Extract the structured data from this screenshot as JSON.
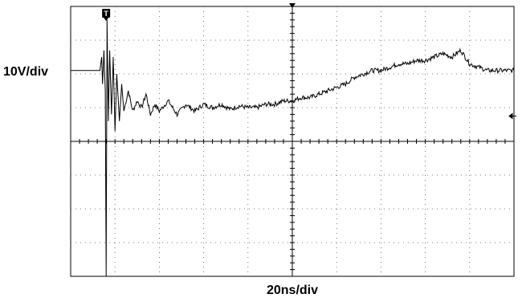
{
  "chart_data": {
    "type": "line",
    "title": "",
    "xlabel": "20ns/div",
    "ylabel": "10V/div",
    "x_divisions": 10,
    "y_divisions": 8,
    "grid": true,
    "trigger_marker": "T",
    "trigger_time_div": 0.8,
    "ground_level_div": 0,
    "reference_arrow": "left-arrow-icon",
    "reference_level_div": 0.75,
    "trace_color": "#000000",
    "grid_color": "#000000",
    "series": [
      {
        "x": [
          0,
          0.5,
          0.66,
          0.7,
          0.72,
          0.75,
          0.78,
          0.8,
          0.82,
          0.85,
          0.88,
          0.92,
          0.96,
          1.0,
          1.04,
          1.1,
          1.15,
          1.2,
          1.3,
          1.4,
          1.5,
          1.6,
          1.7,
          1.8,
          1.9,
          2.0,
          2.2,
          2.4,
          2.6,
          2.8,
          3.0,
          3.2,
          3.4,
          3.6,
          3.8,
          4.0,
          4.2,
          4.4,
          4.6,
          4.8,
          5.0,
          5.2,
          5.4,
          5.6,
          5.8,
          6.0,
          6.2,
          6.4,
          6.6,
          6.8,
          7.0,
          7.2,
          7.4,
          7.6,
          7.8,
          8.0,
          8.2,
          8.4,
          8.6,
          8.8,
          9.0,
          9.2,
          9.4,
          9.6,
          9.8,
          10.0
        ],
        "y": [
          2.1,
          2.1,
          2.1,
          2.5,
          1.7,
          2.7,
          1.5,
          -4.0,
          3.6,
          0.6,
          2.7,
          0.8,
          2.5,
          0.3,
          2.0,
          0.6,
          1.7,
          0.9,
          1.5,
          0.9,
          1.2,
          1.0,
          1.4,
          0.8,
          1.1,
          0.9,
          1.2,
          0.8,
          1.1,
          0.9,
          1.1,
          1.0,
          1.1,
          0.95,
          1.05,
          1.0,
          1.0,
          1.1,
          1.1,
          1.2,
          1.2,
          1.3,
          1.3,
          1.4,
          1.5,
          1.6,
          1.7,
          1.9,
          2.0,
          2.1,
          2.1,
          2.2,
          2.3,
          2.3,
          2.4,
          2.4,
          2.5,
          2.6,
          2.5,
          2.7,
          2.3,
          2.2,
          2.1,
          2.1,
          2.1,
          2.1
        ]
      }
    ]
  }
}
